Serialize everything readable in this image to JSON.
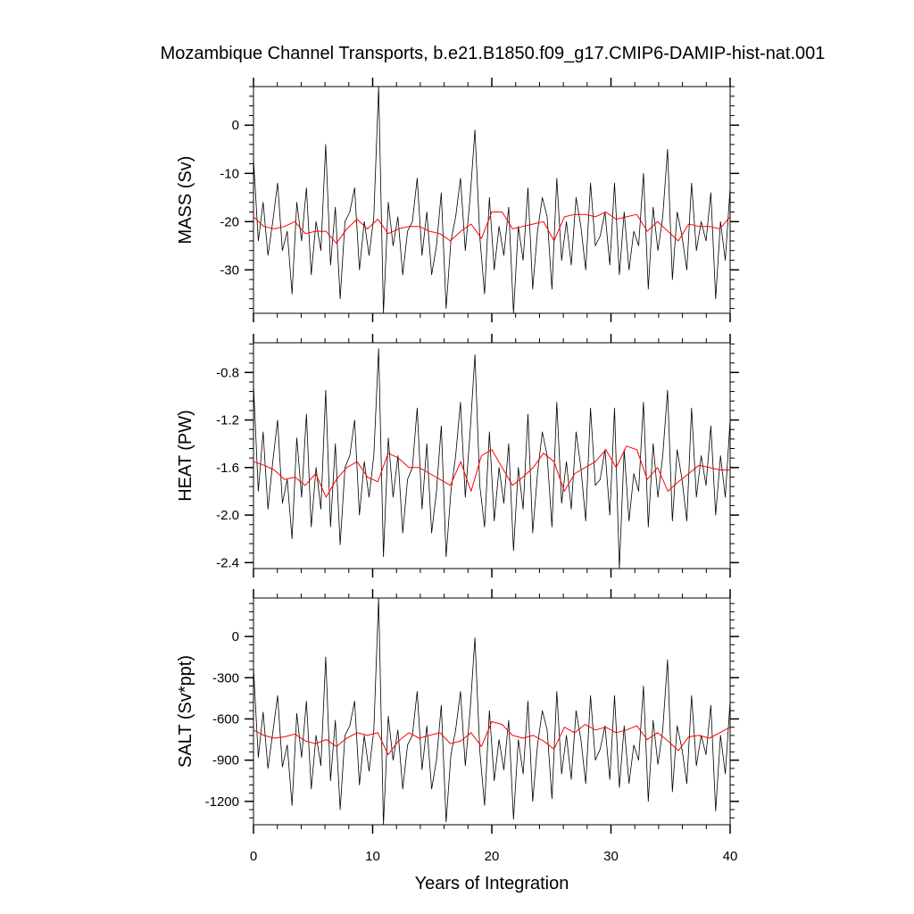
{
  "chart_data": {
    "type": "line",
    "title": "Mozambique Channel Transports, b.e21.B1850.f09_g17.CMIP6-DAMIP-hist-nat.001",
    "xlabel": "Years of Integration",
    "xlim": [
      0,
      40
    ],
    "xticks": [
      0,
      10,
      20,
      30,
      40
    ],
    "xtick_labels": [
      "0",
      "10",
      "20",
      "30",
      "40"
    ],
    "grid": false,
    "colors": {
      "monthly": "#000000",
      "annual": "#ff0000"
    },
    "panels": [
      {
        "ylabel": "MASS (Sv)",
        "ylim": [
          -39,
          8
        ],
        "yticks": [
          0,
          -10,
          -20,
          -30
        ],
        "ytick_labels": [
          "0",
          "-10",
          "-20",
          "-30"
        ],
        "series": [
          {
            "values": [
              -7,
              -24,
              -16,
              -27,
              -20,
              -12,
              -26,
              -22,
              -35,
              -16,
              -24,
              -13,
              -31,
              -20,
              -26,
              -4,
              -29,
              -17,
              -36,
              -20,
              -18,
              -13,
              -30,
              -20,
              -27,
              -19,
              8,
              -39,
              -16,
              -25,
              -19,
              -31,
              -22,
              -20,
              -11,
              -27,
              -18,
              -31,
              -25,
              -14,
              -38,
              -24,
              -19,
              -11,
              -26,
              -15,
              -1,
              -23,
              -35,
              -15,
              -30,
              -21,
              -27,
              -17,
              -39,
              -21,
              -28,
              -13,
              -34,
              -22,
              -15,
              -19,
              -34,
              -11,
              -28,
              -20,
              -29,
              -15,
              -21,
              -30,
              -12,
              -25,
              -23,
              -18,
              -29,
              -12,
              -31,
              -18,
              -30,
              -22,
              -25,
              -10,
              -34,
              -17,
              -26,
              -19,
              -5,
              -32,
              -18,
              -23,
              -30,
              -12,
              -26,
              -20,
              -24,
              -14,
              -36,
              -20,
              -28,
              -13
            ]
          },
          {
            "values": [
              -19,
              -21,
              -21.5,
              -21,
              -20,
              -22.5,
              -22,
              -22,
              -24.5,
              -21.5,
              -19.5,
              -21.5,
              -19.5,
              -22.5,
              -21.5,
              -21,
              -21,
              -22,
              -22.5,
              -24,
              -22,
              -20.5,
              -23.5,
              -18,
              -18,
              -21.5,
              -21,
              -20.5,
              -20,
              -24,
              -19,
              -18.5,
              -18.5,
              -19,
              -18,
              -19.5,
              -19,
              -18.5,
              -22,
              -20,
              -22,
              -24,
              -20.5,
              -21,
              -21,
              -21.5,
              -19
            ]
          }
        ]
      },
      {
        "ylabel": "HEAT (PW)",
        "ylim": [
          -2.45,
          -0.55
        ],
        "yticks": [
          -0.8,
          -1.2,
          -1.6,
          -2.0,
          -2.4
        ],
        "ytick_labels": [
          "-0.8",
          "-1.2",
          "-1.6",
          "-2.0",
          "-2.4"
        ],
        "series": [
          {
            "values": [
              -0.9,
              -1.8,
              -1.3,
              -1.95,
              -1.55,
              -1.2,
              -1.9,
              -1.7,
              -2.2,
              -1.35,
              -1.85,
              -1.15,
              -2.1,
              -1.6,
              -1.95,
              -0.95,
              -2.1,
              -1.4,
              -2.25,
              -1.6,
              -1.5,
              -1.2,
              -2.0,
              -1.55,
              -1.85,
              -1.5,
              -0.6,
              -2.35,
              -1.35,
              -1.85,
              -1.5,
              -2.15,
              -1.7,
              -1.6,
              -1.1,
              -1.95,
              -1.4,
              -2.15,
              -1.8,
              -1.25,
              -2.35,
              -1.8,
              -1.5,
              -1.05,
              -1.85,
              -1.3,
              -0.65,
              -1.75,
              -2.1,
              -1.3,
              -2.05,
              -1.6,
              -1.9,
              -1.4,
              -2.3,
              -1.6,
              -1.95,
              -1.15,
              -2.15,
              -1.65,
              -1.3,
              -1.5,
              -2.1,
              -1.05,
              -1.9,
              -1.55,
              -1.95,
              -1.3,
              -1.6,
              -2.05,
              -1.1,
              -1.75,
              -1.7,
              -1.45,
              -2.0,
              -1.1,
              -2.45,
              -1.45,
              -2.05,
              -1.65,
              -1.8,
              -1.05,
              -2.1,
              -1.4,
              -1.85,
              -1.5,
              -0.95,
              -2.05,
              -1.45,
              -1.7,
              -2.05,
              -1.1,
              -1.85,
              -1.5,
              -1.75,
              -1.25,
              -2.0,
              -1.5,
              -1.85,
              -1.2
            ]
          },
          {
            "values": [
              -1.55,
              -1.58,
              -1.62,
              -1.7,
              -1.68,
              -1.75,
              -1.65,
              -1.85,
              -1.7,
              -1.6,
              -1.55,
              -1.68,
              -1.72,
              -1.48,
              -1.52,
              -1.6,
              -1.6,
              -1.65,
              -1.7,
              -1.75,
              -1.55,
              -1.8,
              -1.5,
              -1.45,
              -1.6,
              -1.75,
              -1.68,
              -1.6,
              -1.48,
              -1.55,
              -1.8,
              -1.65,
              -1.6,
              -1.55,
              -1.45,
              -1.6,
              -1.42,
              -1.45,
              -1.7,
              -1.6,
              -1.8,
              -1.72,
              -1.65,
              -1.58,
              -1.6,
              -1.62,
              -1.62
            ]
          }
        ]
      },
      {
        "ylabel": "SALT (Sv*ppt)",
        "ylim": [
          -1370,
          280
        ],
        "yticks": [
          0,
          -300,
          -600,
          -900,
          -1200
        ],
        "ytick_labels": [
          "0",
          "-300",
          "-600",
          "-900",
          "-1200"
        ],
        "series": [
          {
            "values": [
              -230,
              -880,
              -550,
              -960,
              -700,
              -430,
              -950,
              -790,
              -1230,
              -560,
              -880,
              -470,
              -1110,
              -720,
              -940,
              -150,
              -1050,
              -610,
              -1260,
              -720,
              -650,
              -470,
              -1080,
              -720,
              -980,
              -680,
              280,
              -1370,
              -580,
              -900,
              -680,
              -1110,
              -790,
              -720,
              -400,
              -970,
              -650,
              -1110,
              -900,
              -500,
              -1350,
              -860,
              -680,
              -400,
              -940,
              -540,
              -10,
              -830,
              -1230,
              -540,
              -1050,
              -750,
              -970,
              -610,
              -1330,
              -750,
              -1000,
              -470,
              -1200,
              -790,
              -540,
              -680,
              -1180,
              -400,
              -1000,
              -720,
              -1040,
              -540,
              -750,
              -1070,
              -430,
              -900,
              -820,
              -650,
              -1040,
              -430,
              -1100,
              -650,
              -1070,
              -790,
              -900,
              -360,
              -1200,
              -610,
              -930,
              -680,
              -170,
              -1130,
              -650,
              -820,
              -1070,
              -430,
              -940,
              -720,
              -860,
              -500,
              -1270,
              -720,
              -1000,
              -470
            ]
          },
          {
            "values": [
              -680,
              -720,
              -740,
              -730,
              -710,
              -760,
              -780,
              -750,
              -800,
              -740,
              -700,
              -720,
              -700,
              -860,
              -760,
              -700,
              -740,
              -720,
              -700,
              -780,
              -760,
              -700,
              -800,
              -620,
              -640,
              -720,
              -740,
              -720,
              -760,
              -820,
              -660,
              -700,
              -640,
              -680,
              -660,
              -700,
              -680,
              -650,
              -750,
              -700,
              -760,
              -830,
              -730,
              -720,
              -740,
              -700,
              -660
            ]
          }
        ]
      }
    ]
  }
}
